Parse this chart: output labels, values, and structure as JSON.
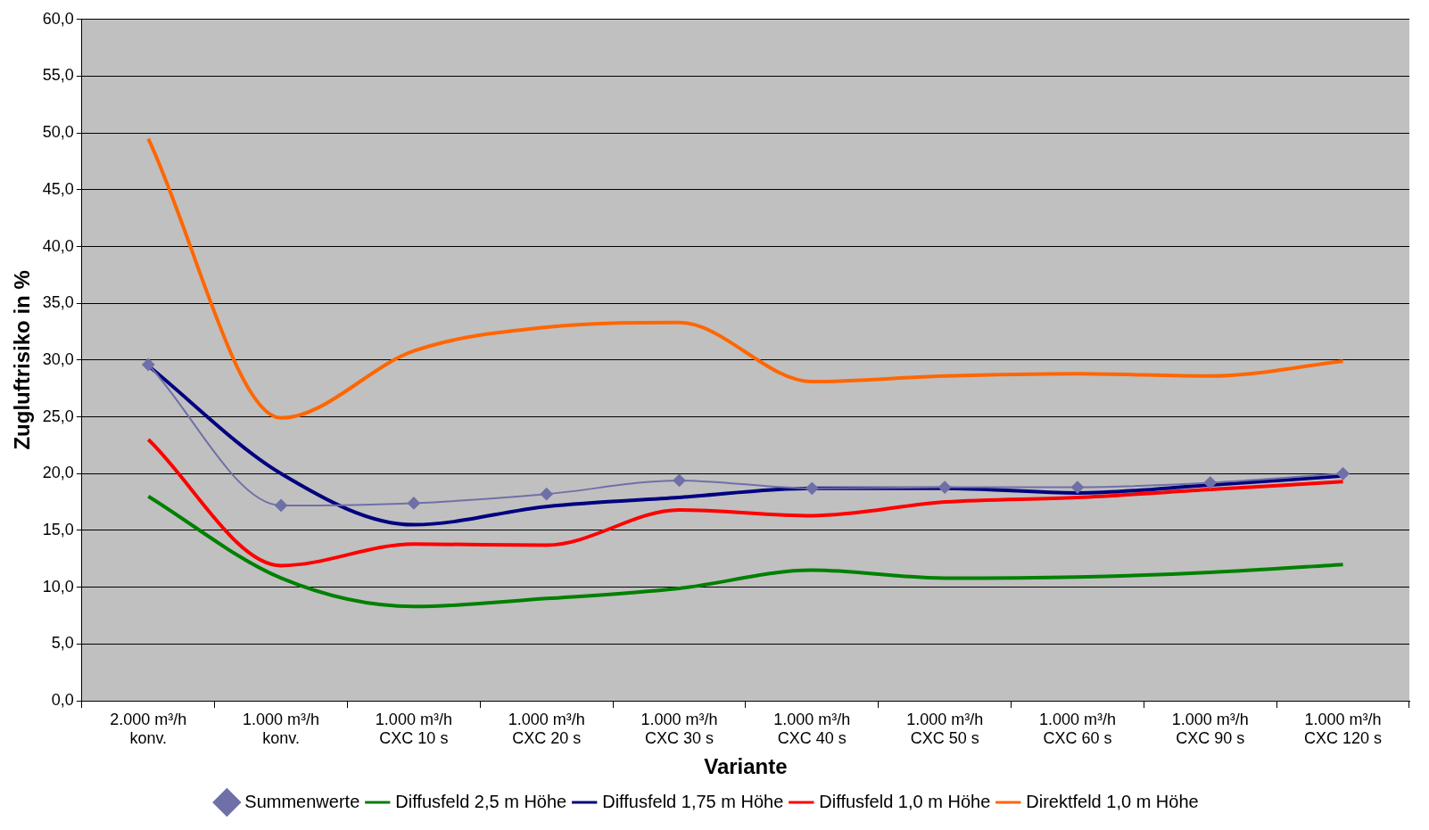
{
  "chart_data": {
    "type": "line",
    "xlabel": "Variante",
    "ylabel": "Zugluftrisiko in %",
    "categories": [
      "2.000 m³/h\nkonv.",
      "1.000 m³/h\nkonv.",
      "1.000 m³/h\nCXC 10 s",
      "1.000 m³/h\nCXC 20 s",
      "1.000 m³/h\nCXC 30 s",
      "1.000 m³/h\nCXC 40 s",
      "1.000 m³/h\nCXC 50 s",
      "1.000 m³/h\nCXC 60 s",
      "1.000 m³/h\nCXC 90 s",
      "1.000 m³/h\nCXC 120 s"
    ],
    "series": [
      {
        "name": "Summenwerte",
        "color": "#7070a8",
        "marker": "diamond",
        "values": [
          29.6,
          17.2,
          17.4,
          18.2,
          19.4,
          18.7,
          18.8,
          18.8,
          19.2,
          20.0
        ]
      },
      {
        "name": "Diffusfeld 2,5 m Höhe",
        "color": "#008000",
        "marker": "none",
        "values": [
          18.0,
          10.8,
          8.3,
          9.0,
          9.9,
          11.5,
          10.8,
          10.9,
          11.3,
          12.0
        ]
      },
      {
        "name": "Diffusfeld 1,75 m Höhe",
        "color": "#000080",
        "marker": "none",
        "values": [
          29.5,
          20.0,
          15.5,
          17.1,
          17.9,
          18.7,
          18.7,
          18.3,
          19.0,
          19.8
        ]
      },
      {
        "name": "Diffusfeld 1,0 m Höhe",
        "color": "#ff0000",
        "marker": "none",
        "values": [
          23.0,
          11.9,
          13.8,
          13.7,
          16.8,
          16.3,
          17.5,
          17.9,
          18.6,
          19.3
        ]
      },
      {
        "name": "Direktfeld 1,0 m Höhe",
        "color": "#ff6600",
        "marker": "none",
        "values": [
          49.5,
          24.9,
          30.8,
          32.9,
          33.3,
          28.1,
          28.6,
          28.8,
          28.6,
          29.9
        ]
      }
    ],
    "ylim": [
      0,
      60
    ],
    "yticks": [
      {
        "value": 0,
        "label": "0,0"
      },
      {
        "value": 5,
        "label": "5,0"
      },
      {
        "value": 10,
        "label": "10,0"
      },
      {
        "value": 15,
        "label": "15,0"
      },
      {
        "value": 20,
        "label": "20,0"
      },
      {
        "value": 25,
        "label": "25,0"
      },
      {
        "value": 30,
        "label": "30,0"
      },
      {
        "value": 35,
        "label": "35,0"
      },
      {
        "value": 40,
        "label": "40,0"
      },
      {
        "value": 45,
        "label": "45,0"
      },
      {
        "value": 50,
        "label": "50,0"
      },
      {
        "value": 55,
        "label": "55,0"
      },
      {
        "value": 60,
        "label": "60,0"
      }
    ],
    "grid": "y",
    "legend": "bottom",
    "line_style": "solid"
  }
}
